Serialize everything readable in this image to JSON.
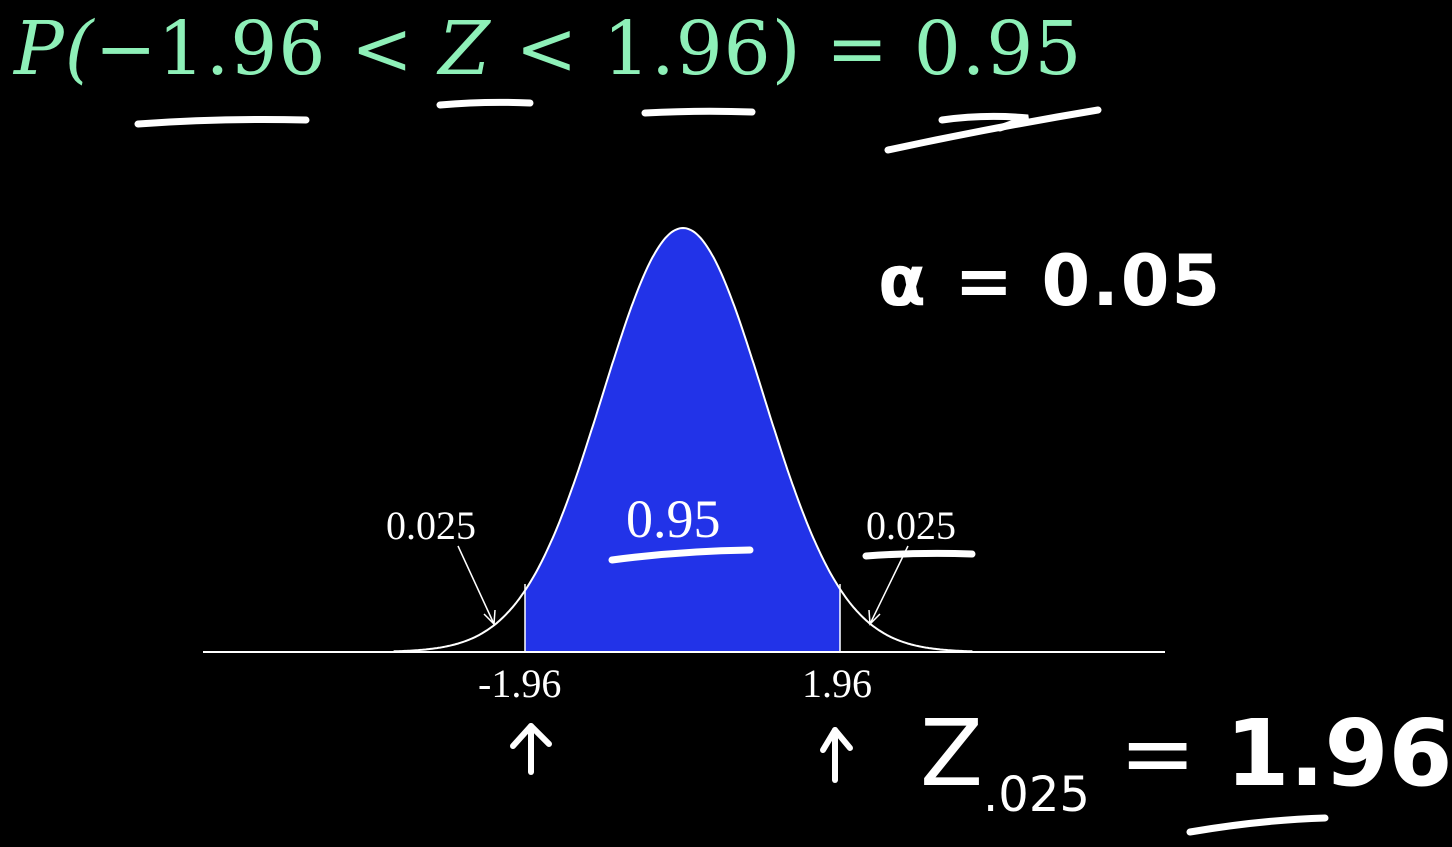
{
  "equation": {
    "prefix": "P(",
    "neg_bound": "−1.96",
    "lt1": " < ",
    "var": "Z",
    "lt2": " < ",
    "pos_bound": "1.96",
    "suffix": ") = ",
    "prob": "0.95"
  },
  "annotations": {
    "alpha": "α = 0.05",
    "z_prefix": "Z",
    "z_sub": ".025",
    "z_eq": " = ",
    "z_val": "1.96"
  },
  "chart_data": {
    "type": "area",
    "distribution": "standard normal",
    "x_range": [
      -3.6,
      3.6
    ],
    "shaded_interval": [
      -1.96,
      1.96
    ],
    "center_area_label": "0.95",
    "left_tail_label": "0.025",
    "right_tail_label": "0.025",
    "tick_labels": [
      "-1.96",
      "1.96"
    ],
    "colors": {
      "fill": "#2233e8",
      "curve": "#ffffff",
      "equation": "#8ef0b8",
      "background": "#000000"
    }
  }
}
